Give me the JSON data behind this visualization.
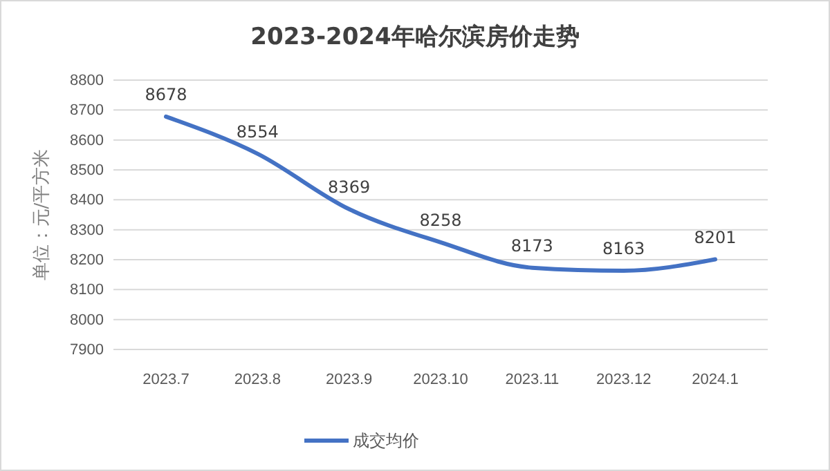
{
  "chart_data": {
    "type": "line",
    "title": "2023-2024年哈尔滨房价走势",
    "ylabel": "单位：元/平方米",
    "categories": [
      "2023.7",
      "2023.8",
      "2023.9",
      "2023.10",
      "2023.11",
      "2023.12",
      "2024.1"
    ],
    "series": [
      {
        "name": "成交均价",
        "color": "#4472c4",
        "values": [
          8678,
          8554,
          8369,
          8258,
          8173,
          8163,
          8201
        ]
      }
    ],
    "ylim": [
      7900,
      8800
    ],
    "yticks": [
      7900,
      8000,
      8100,
      8200,
      8300,
      8400,
      8500,
      8600,
      8700,
      8800
    ],
    "grid": "y",
    "legend": "bottom",
    "data_labels": true,
    "marker": "none",
    "line_style": "solid"
  }
}
